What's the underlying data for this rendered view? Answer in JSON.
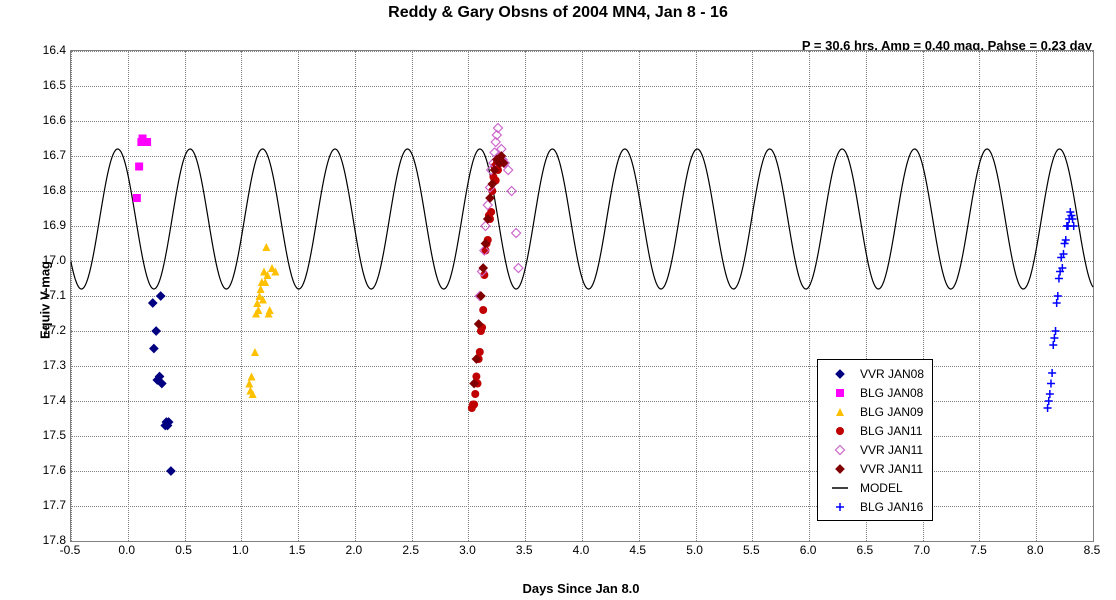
{
  "title": "Reddy & Gary Obsns of 2004 MN4, Jan 8 - 16",
  "annotation": "P = 30.6 hrs, Amp = 0.40 mag, Pahse = 0.23 day",
  "ylabel": "Equiv V-mag",
  "xlabel": "Days Since Jan 8.0",
  "xlim": [
    -0.5,
    8.5
  ],
  "ylim": [
    17.8,
    16.4
  ],
  "xtick_step": 0.5,
  "ytick_step": 0.1,
  "grid_color": "#808080",
  "background_color": "#ffffff",
  "model": {
    "period_days": 0.638,
    "amplitude": 0.4,
    "mean": 16.88,
    "phase_days": 0.23,
    "color": "#000000",
    "width": 1.2
  },
  "series": [
    {
      "name": "VVR JAN08",
      "marker": "diamond-filled",
      "color": "#000080",
      "size": 8,
      "data": [
        [
          0.22,
          17.12
        ],
        [
          0.23,
          17.25
        ],
        [
          0.25,
          17.2
        ],
        [
          0.26,
          17.34
        ],
        [
          0.28,
          17.33
        ],
        [
          0.29,
          17.1
        ],
        [
          0.3,
          17.35
        ],
        [
          0.33,
          17.47
        ],
        [
          0.34,
          17.46
        ],
        [
          0.35,
          17.47
        ],
        [
          0.36,
          17.46
        ],
        [
          0.38,
          17.6
        ]
      ]
    },
    {
      "name": "BLG JAN08",
      "marker": "square-filled",
      "color": "#ff00ff",
      "size": 8,
      "data": [
        [
          0.08,
          16.82
        ],
        [
          0.1,
          16.73
        ],
        [
          0.12,
          16.66
        ],
        [
          0.13,
          16.65
        ],
        [
          0.15,
          16.66
        ],
        [
          0.17,
          16.66
        ]
      ]
    },
    {
      "name": "BLG JAN09",
      "marker": "triangle-filled",
      "color": "#ffc000",
      "size": 8,
      "data": [
        [
          1.07,
          17.35
        ],
        [
          1.08,
          17.37
        ],
        [
          1.09,
          17.33
        ],
        [
          1.1,
          17.38
        ],
        [
          1.12,
          17.26
        ],
        [
          1.13,
          17.15
        ],
        [
          1.14,
          17.12
        ],
        [
          1.15,
          17.14
        ],
        [
          1.16,
          17.1
        ],
        [
          1.17,
          17.08
        ],
        [
          1.18,
          17.06
        ],
        [
          1.19,
          17.11
        ],
        [
          1.2,
          17.03
        ],
        [
          1.21,
          17.06
        ],
        [
          1.22,
          16.96
        ],
        [
          1.23,
          17.04
        ],
        [
          1.24,
          17.15
        ],
        [
          1.25,
          17.14
        ],
        [
          1.27,
          17.02
        ],
        [
          1.3,
          17.03
        ]
      ]
    },
    {
      "name": "BLG JAN11",
      "marker": "circle-filled",
      "color": "#c00000",
      "size": 8,
      "data": [
        [
          3.03,
          17.42
        ],
        [
          3.04,
          17.41
        ],
        [
          3.05,
          17.41
        ],
        [
          3.06,
          17.38
        ],
        [
          3.07,
          17.33
        ],
        [
          3.08,
          17.35
        ],
        [
          3.09,
          17.28
        ],
        [
          3.1,
          17.26
        ],
        [
          3.11,
          17.2
        ],
        [
          3.12,
          17.19
        ],
        [
          3.13,
          17.14
        ],
        [
          3.14,
          17.04
        ],
        [
          3.15,
          16.97
        ],
        [
          3.16,
          16.95
        ],
        [
          3.17,
          16.94
        ],
        [
          3.18,
          16.87
        ],
        [
          3.19,
          16.88
        ],
        [
          3.2,
          16.86
        ],
        [
          3.21,
          16.8
        ],
        [
          3.22,
          16.76
        ],
        [
          3.23,
          16.73
        ],
        [
          3.24,
          16.77
        ],
        [
          3.25,
          16.72
        ],
        [
          3.26,
          16.74
        ],
        [
          3.28,
          16.72
        ]
      ]
    },
    {
      "name": "VVR JAN11",
      "marker": "diamond-open",
      "color": "#cc66cc",
      "size": 9,
      "data": [
        [
          3.1,
          17.1
        ],
        [
          3.12,
          17.03
        ],
        [
          3.14,
          16.97
        ],
        [
          3.15,
          16.9
        ],
        [
          3.17,
          16.84
        ],
        [
          3.19,
          16.79
        ],
        [
          3.2,
          16.74
        ],
        [
          3.22,
          16.72
        ],
        [
          3.23,
          16.69
        ],
        [
          3.24,
          16.66
        ],
        [
          3.25,
          16.64
        ],
        [
          3.26,
          16.62
        ],
        [
          3.27,
          16.7
        ],
        [
          3.29,
          16.68
        ],
        [
          3.3,
          16.71
        ],
        [
          3.32,
          16.72
        ],
        [
          3.35,
          16.74
        ],
        [
          3.38,
          16.8
        ],
        [
          3.42,
          16.92
        ],
        [
          3.44,
          17.02
        ]
      ]
    },
    {
      "name": "VVR JAN11",
      "marker": "diamond-filled",
      "color": "#800000",
      "size": 8,
      "data": [
        [
          3.05,
          17.35
        ],
        [
          3.07,
          17.28
        ],
        [
          3.09,
          17.18
        ],
        [
          3.11,
          17.1
        ],
        [
          3.13,
          17.02
        ],
        [
          3.15,
          16.95
        ],
        [
          3.17,
          16.88
        ],
        [
          3.19,
          16.82
        ],
        [
          3.21,
          16.78
        ],
        [
          3.23,
          16.74
        ],
        [
          3.25,
          16.71
        ],
        [
          3.27,
          16.72
        ],
        [
          3.29,
          16.7
        ],
        [
          3.31,
          16.72
        ]
      ]
    },
    {
      "name": "MODEL",
      "marker": "line",
      "color": "#000000"
    },
    {
      "name": "BLG JAN16",
      "marker": "plus",
      "color": "#0000ff",
      "size": 8,
      "data": [
        [
          8.1,
          17.42
        ],
        [
          8.11,
          17.4
        ],
        [
          8.12,
          17.38
        ],
        [
          8.13,
          17.35
        ],
        [
          8.14,
          17.32
        ],
        [
          8.15,
          17.24
        ],
        [
          8.16,
          17.22
        ],
        [
          8.17,
          17.2
        ],
        [
          8.18,
          17.12
        ],
        [
          8.19,
          17.1
        ],
        [
          8.2,
          17.05
        ],
        [
          8.21,
          17.03
        ],
        [
          8.22,
          16.99
        ],
        [
          8.23,
          17.02
        ],
        [
          8.24,
          16.98
        ],
        [
          8.25,
          16.95
        ],
        [
          8.26,
          16.94
        ],
        [
          8.27,
          16.9
        ],
        [
          8.28,
          16.9
        ],
        [
          8.29,
          16.88
        ],
        [
          8.3,
          16.86
        ],
        [
          8.31,
          16.87
        ],
        [
          8.32,
          16.88
        ],
        [
          8.33,
          16.9
        ]
      ]
    }
  ],
  "legend_labels": {
    "s0": "VVR JAN08",
    "s1": "BLG JAN08",
    "s2": "BLG JAN09",
    "s3": "BLG JAN11",
    "s4": "VVR JAN11",
    "s5": "VVR JAN11",
    "s6": "MODEL",
    "s7": "BLG JAN16"
  }
}
